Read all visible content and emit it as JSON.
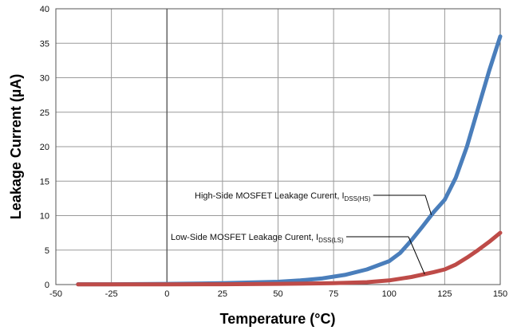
{
  "chart_data": {
    "type": "line",
    "xlabel": "Temperature (°C)",
    "ylabel": "Leakage Current  (µA)",
    "xlim": [
      -50,
      150
    ],
    "ylim": [
      0,
      40
    ],
    "x_ticks": [
      -50,
      -25,
      0,
      25,
      50,
      75,
      100,
      125,
      150
    ],
    "y_ticks": [
      0,
      5,
      10,
      15,
      20,
      25,
      30,
      35,
      40
    ],
    "grid": true,
    "series": [
      {
        "color": "#4a7ebb",
        "x": [
          -40,
          -25,
          0,
          25,
          50,
          60,
          70,
          80,
          90,
          100,
          105,
          110,
          115,
          120,
          125,
          130,
          135,
          140,
          145,
          150
        ],
        "y": [
          0.05,
          0.05,
          0.1,
          0.2,
          0.4,
          0.6,
          0.9,
          1.4,
          2.2,
          3.4,
          4.6,
          6.4,
          8.4,
          10.5,
          12.3,
          15.5,
          20.0,
          25.5,
          31.0,
          36.0
        ]
      },
      {
        "color": "#be4b48",
        "x": [
          -40,
          -25,
          0,
          25,
          50,
          75,
          90,
          100,
          110,
          120,
          125,
          130,
          135,
          140,
          145,
          150
        ],
        "y": [
          0.02,
          0.02,
          0.03,
          0.05,
          0.1,
          0.2,
          0.35,
          0.6,
          1.1,
          1.8,
          2.2,
          2.9,
          3.9,
          5.0,
          6.2,
          7.5
        ]
      }
    ],
    "annotations": [
      {
        "text": "High-Side MOSFET Leakage Curent, I",
        "subscript": "DSS(HS)"
      },
      {
        "text": "Low-Side MOSFET Leakage Curent, I",
        "subscript": "DSS(LS)"
      }
    ]
  }
}
